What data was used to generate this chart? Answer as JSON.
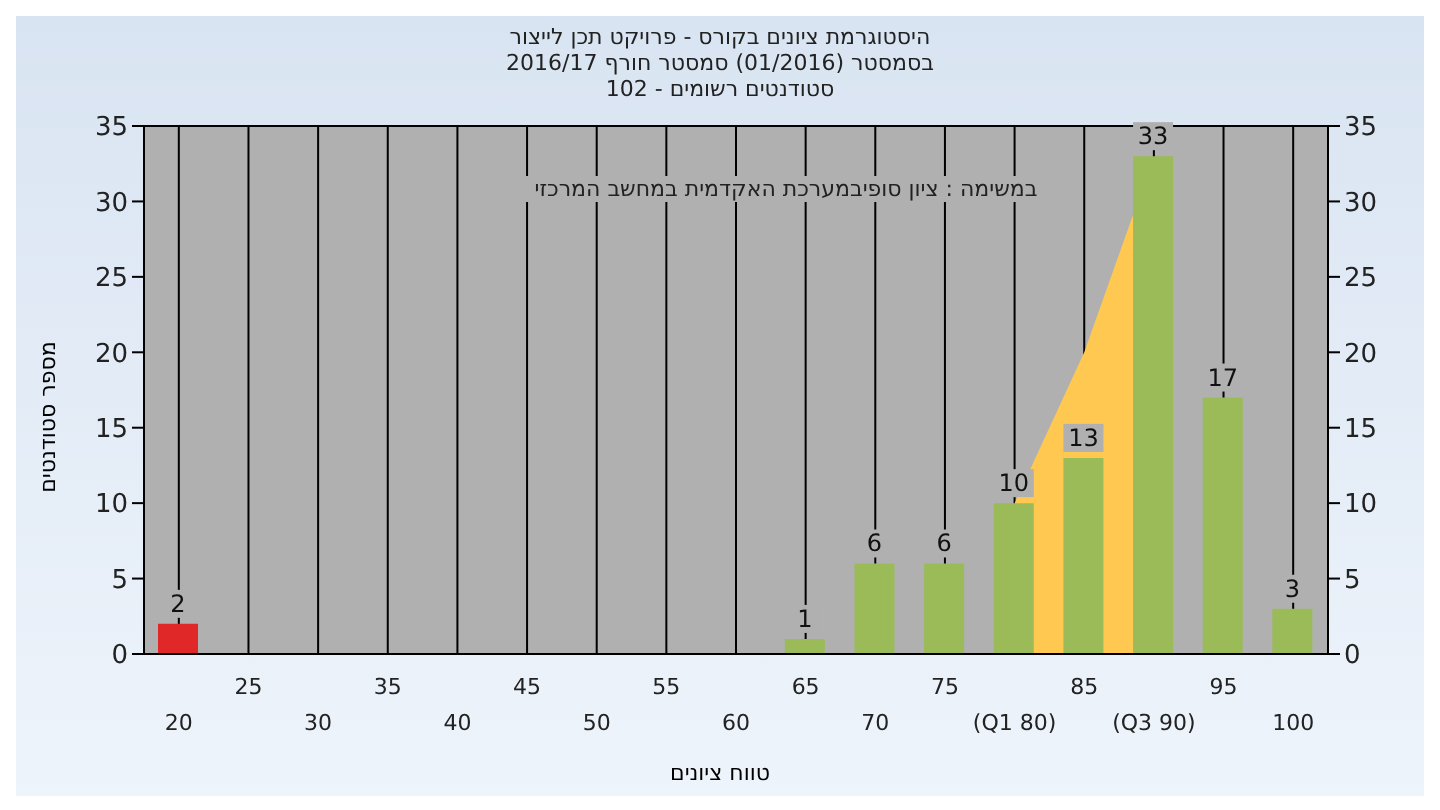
{
  "chart_data": {
    "type": "bar",
    "title": "היסטוגרמת ציונים בקורס - פרויקט תכן לייצור",
    "subtitle": "בסמסטר  (01/2016)  סמסטר חורף 2016/17\nסטודנטים רשומים - 102",
    "xlabel": "טווח ציונים",
    "ylabel": "מספר סטודנטים",
    "annotations": [
      "במשימה : ציון סופיבמערכת האקדמית במחשב המרכזי"
    ],
    "categories": [
      "20",
      "25",
      "30",
      "35",
      "40",
      "45",
      "50",
      "55",
      "60",
      "65",
      "70",
      "75",
      "(Q1 80)",
      "85",
      "(Q3 90)",
      "95",
      "100"
    ],
    "series": [
      {
        "type": "area",
        "color": "#ffc850",
        "values": [
          null,
          null,
          null,
          null,
          null,
          null,
          null,
          null,
          null,
          null,
          null,
          null,
          10,
          20,
          33,
          null,
          null
        ]
      },
      {
        "colors": [
          "#e02828",
          "#9bbb59",
          "#9bbb59",
          "#9bbb59",
          "#9bbb59",
          "#9bbb59",
          "#9bbb59",
          "#9bbb59",
          "#9bbb59",
          "#9bbb59",
          "#9bbb59",
          "#9bbb59",
          "#9bbb59",
          "#9bbb59",
          "#9bbb59",
          "#9bbb59",
          "#9bbb59"
        ],
        "values": [
          2,
          null,
          null,
          null,
          null,
          null,
          null,
          null,
          null,
          1,
          6,
          6,
          10,
          13,
          33,
          17,
          3
        ],
        "data_labels": true
      }
    ],
    "ylim": [
      0,
      35
    ],
    "yticks": [
      0,
      5,
      10,
      15,
      20,
      25,
      30,
      35
    ],
    "y2lim": [
      0,
      35
    ],
    "y2ticks": [
      0,
      5,
      10,
      15,
      20,
      25,
      30,
      35
    ],
    "grid": true,
    "legend": false
  }
}
